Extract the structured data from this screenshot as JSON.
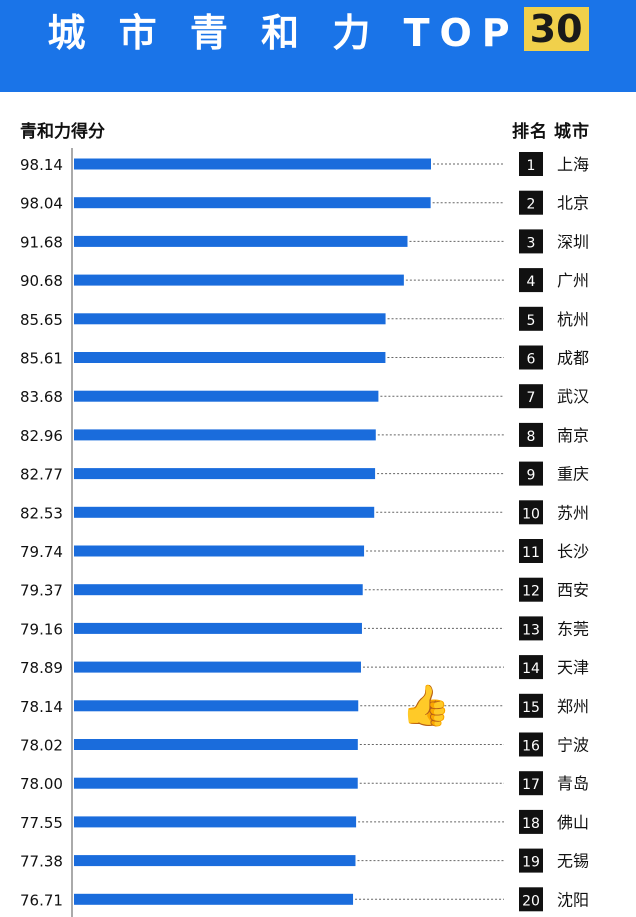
{
  "banner": {
    "title": "城 市 青 和 力 TOP",
    "highlight": "30"
  },
  "header": {
    "left_label": "青和力得分",
    "rank_label": "排名",
    "city_label": "城市"
  },
  "emoji": "👍",
  "colors": {
    "banner": "#1a74e8",
    "bar": "#1a6cdc",
    "highlight": "#f1d04b",
    "rank_box": "#111111"
  },
  "chart_data": {
    "type": "bar",
    "orientation": "horizontal",
    "title": "",
    "xlabel": "",
    "ylabel": "青和力得分",
    "legend": "none",
    "grid": false,
    "categories": [
      "上海",
      "北京",
      "深圳",
      "广州",
      "杭州",
      "成都",
      "武汉",
      "南京",
      "重庆",
      "苏州",
      "长沙",
      "西安",
      "东莞",
      "天津",
      "郑州",
      "宁波",
      "青岛",
      "佛山",
      "无锡",
      "沈阳"
    ],
    "ranks": [
      "1",
      "2",
      "3",
      "4",
      "5",
      "6",
      "7",
      "8",
      "9",
      "10",
      "11",
      "12",
      "13",
      "14",
      "15",
      "16",
      "17",
      "18",
      "19",
      "20"
    ],
    "values": [
      98.14,
      98.04,
      91.68,
      90.68,
      85.65,
      85.61,
      83.68,
      82.96,
      82.77,
      82.53,
      79.74,
      79.37,
      79.16,
      78.89,
      78.14,
      78.02,
      78.0,
      77.55,
      77.38,
      76.71
    ],
    "value_labels": [
      "98.14",
      "98.04",
      "91.68",
      "90.68",
      "85.65",
      "85.61",
      "83.68",
      "82.96",
      "82.77",
      "82.53",
      "79.74",
      "79.37",
      "79.16",
      "78.89",
      "78.14",
      "78.02",
      "78.00",
      "77.55",
      "77.38",
      "76.71"
    ]
  }
}
